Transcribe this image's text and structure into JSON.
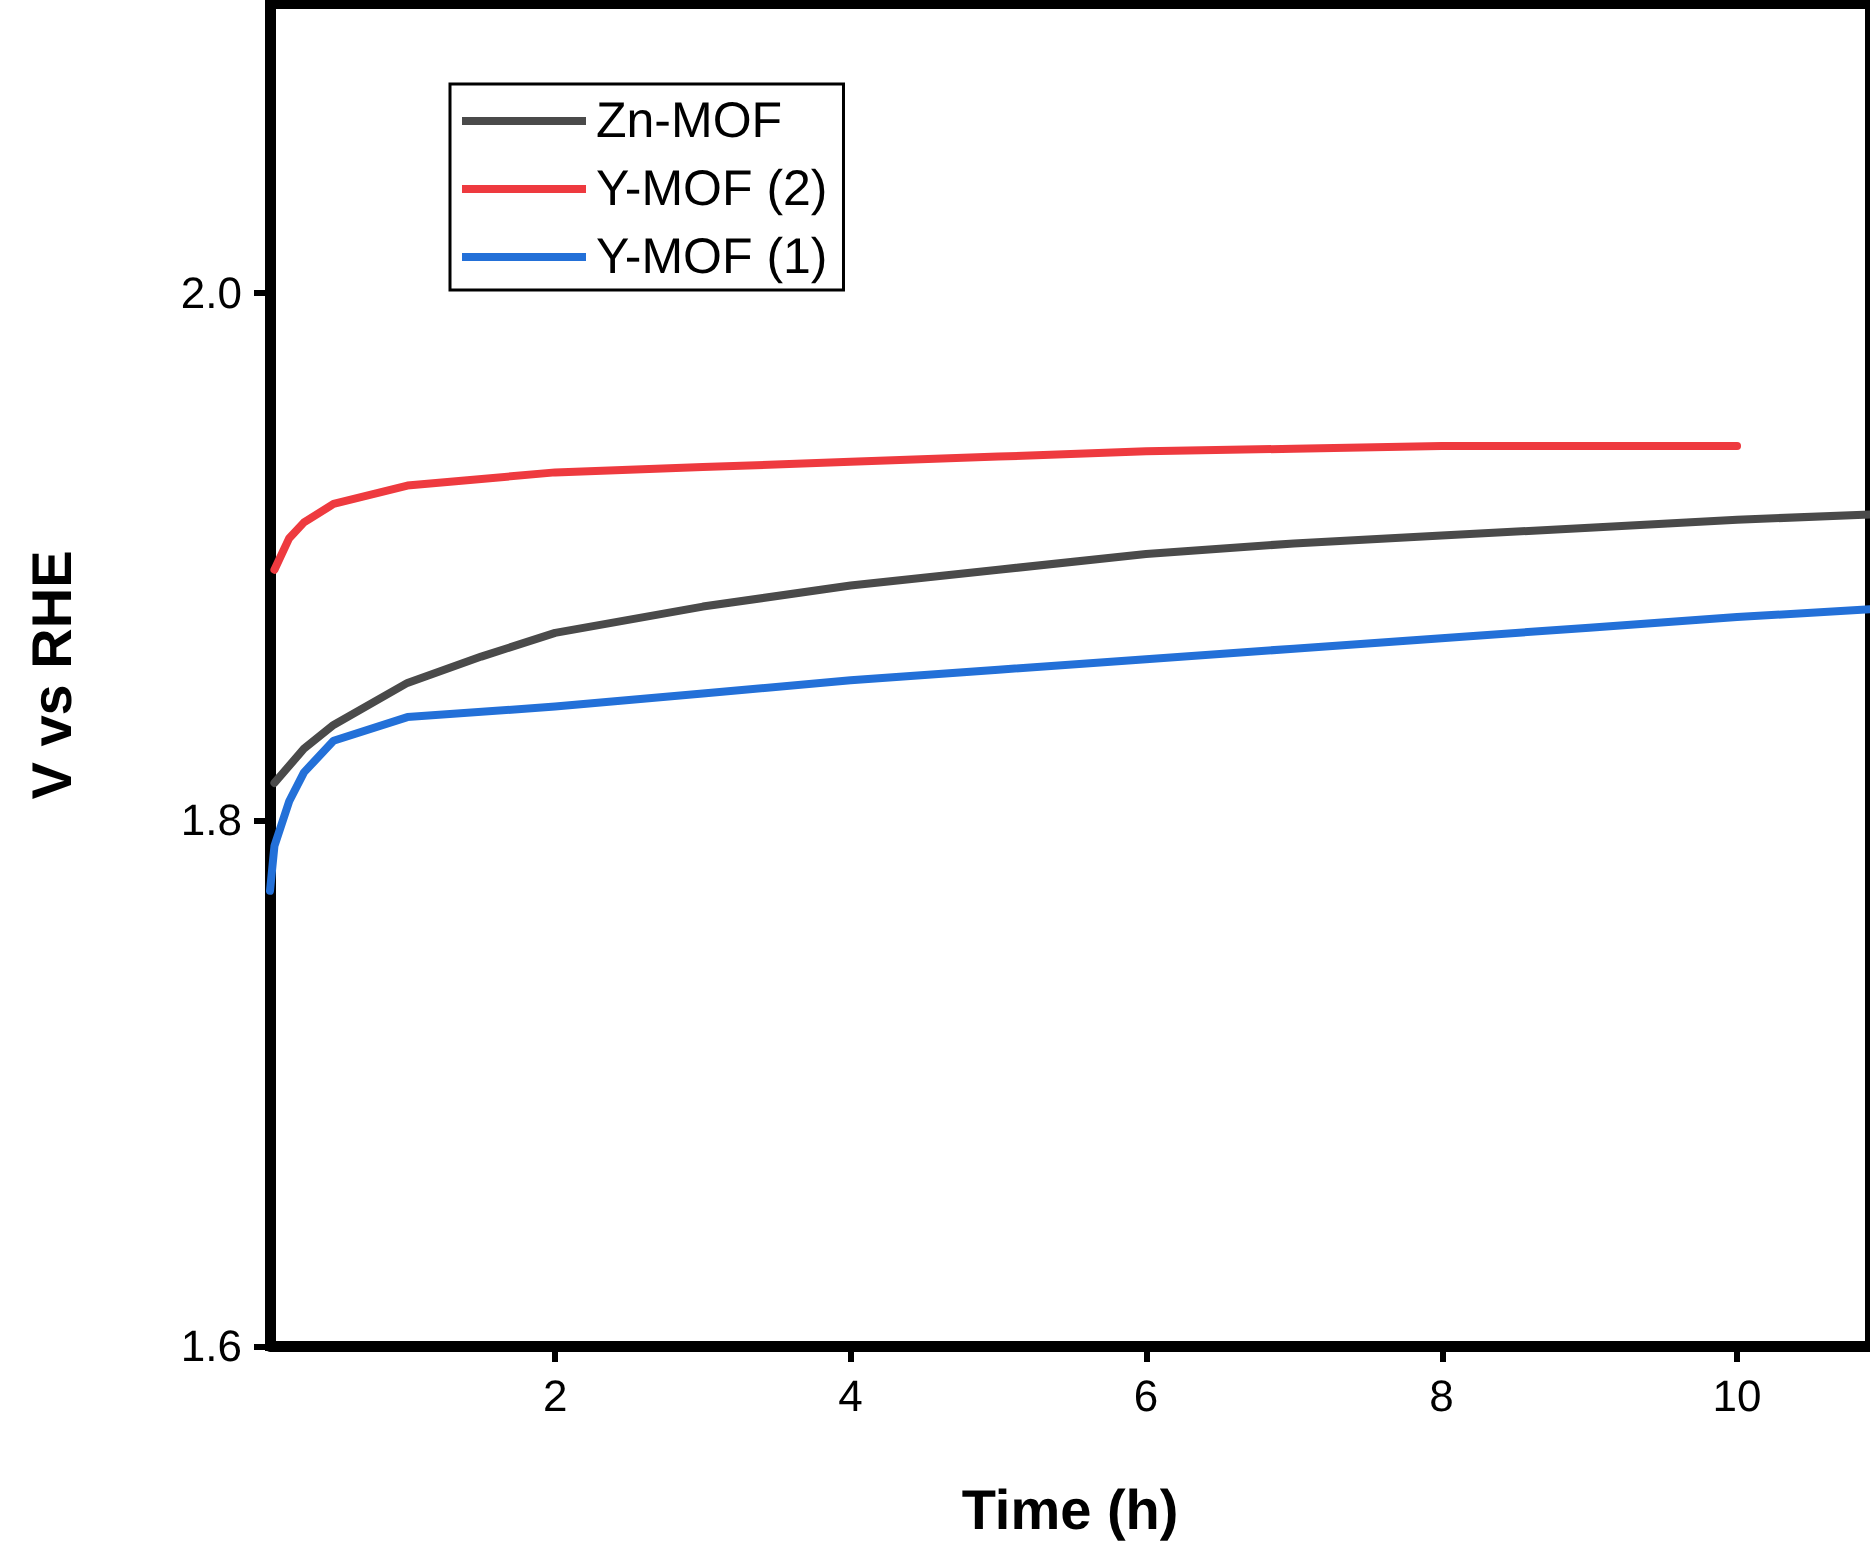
{
  "chart_data": {
    "type": "line",
    "xlabel": "Time (h)",
    "ylabel": "V vs RHE",
    "xlim": [
      0.07,
      10.9
    ],
    "ylim": [
      1.6,
      2.11
    ],
    "xticks": [
      2,
      4,
      6,
      8,
      10
    ],
    "yticks": [
      {
        "value": 1.6,
        "label": "1.6"
      },
      {
        "value": 1.8,
        "label": "1.8"
      },
      {
        "value": 2.0,
        "label": "2.0"
      }
    ],
    "legend": "top left",
    "grid": false,
    "marker": "none",
    "line_style": "solid",
    "series": [
      {
        "name": "Zn-MOF",
        "color": "#4a4a4a",
        "x": [
          0.1,
          0.3,
          0.5,
          1,
          1.5,
          2,
          3,
          4,
          5,
          6,
          7,
          8,
          9,
          10,
          10.9
        ],
        "values": [
          1.814,
          1.827,
          1.836,
          1.852,
          1.862,
          1.871,
          1.881,
          1.889,
          1.895,
          1.901,
          1.905,
          1.908,
          1.911,
          1.914,
          1.916
        ]
      },
      {
        "name": "Y-MOF (2)",
        "color": "#ee3a3f",
        "x": [
          0.1,
          0.2,
          0.3,
          0.5,
          1,
          2,
          3,
          4,
          5,
          6,
          7,
          8,
          9,
          10
        ],
        "values": [
          1.895,
          1.907,
          1.913,
          1.92,
          1.927,
          1.932,
          1.934,
          1.936,
          1.938,
          1.94,
          1.941,
          1.942,
          1.942,
          1.942
        ]
      },
      {
        "name": "Y-MOF (1)",
        "color": "#2370d8",
        "x": [
          0.07,
          0.1,
          0.2,
          0.3,
          0.5,
          1,
          2,
          3,
          4,
          5,
          6,
          7,
          8,
          9,
          10,
          10.9
        ],
        "values": [
          1.773,
          1.79,
          1.807,
          1.818,
          1.83,
          1.839,
          1.843,
          1.848,
          1.853,
          1.857,
          1.861,
          1.865,
          1.869,
          1.873,
          1.877,
          1.88
        ]
      }
    ]
  }
}
